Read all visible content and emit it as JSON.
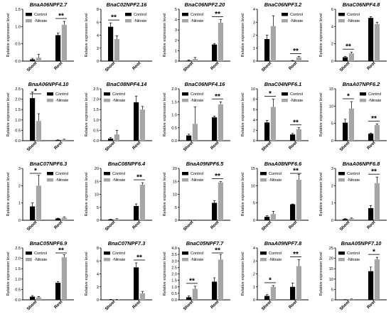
{
  "figure": {
    "colors": {
      "control": "#000000",
      "nitrate": "#a6a6a6",
      "axis": "#000000"
    }
  },
  "chart_data": [
    {
      "type": "bar",
      "title": "BnaA06NPF2.7",
      "ylabel": "Relative expression level",
      "categories": [
        "Shoot",
        "Root"
      ],
      "ylim": [
        0,
        1.5
      ],
      "yticks": [
        "0.0",
        "0.5",
        "1.0",
        "1.5"
      ],
      "legend_pos": "upper-left",
      "series": [
        {
          "name": "Control",
          "values": [
            0.05,
            0.75
          ],
          "errors": [
            0.03,
            0.06
          ]
        },
        {
          "name": "-Nitrate",
          "values": [
            0.1,
            1.05
          ],
          "errors": [
            0.1,
            0.1
          ]
        }
      ],
      "sig": [
        {
          "cat": 1,
          "label": "**"
        }
      ]
    },
    {
      "type": "bar",
      "title": "BnaC02NPF2.16",
      "ylabel": "Relative expression level",
      "categories": [
        "Shoot",
        "Root"
      ],
      "ylim": [
        0,
        8
      ],
      "yticks": [
        "0",
        "2",
        "4",
        "6",
        "8"
      ],
      "legend_pos": "upper-right",
      "series": [
        {
          "name": "Control",
          "values": [
            5.3,
            0.0
          ],
          "errors": [
            0.6,
            0
          ]
        },
        {
          "name": "-Nitrate",
          "values": [
            3.4,
            0.0
          ],
          "errors": [
            0.5,
            0
          ]
        }
      ],
      "sig": [
        {
          "cat": 0,
          "label": "**"
        }
      ]
    },
    {
      "type": "bar",
      "title": "BnaC06NPF2.20",
      "ylabel": "Relative expression level",
      "categories": [
        "Shoot",
        "Root"
      ],
      "ylim": [
        0,
        5
      ],
      "yticks": [
        "0",
        "1",
        "2",
        "3",
        "4",
        "5"
      ],
      "legend_pos": "upper-left",
      "series": [
        {
          "name": "Control",
          "values": [
            0.05,
            1.6
          ],
          "errors": [
            0.05,
            0.1
          ]
        },
        {
          "name": "-Nitrate",
          "values": [
            0.2,
            3.7
          ],
          "errors": [
            0.15,
            0.3
          ]
        }
      ],
      "sig": [
        {
          "cat": 1,
          "label": "**"
        }
      ]
    },
    {
      "type": "bar",
      "title": "BnaC06NPF3.2",
      "ylabel": "Relative expression level",
      "categories": [
        "Shoot",
        "Root"
      ],
      "ylim": [
        0,
        4
      ],
      "yticks": [
        "0",
        "1",
        "2",
        "3",
        "4"
      ],
      "legend_pos": "upper-right",
      "series": [
        {
          "name": "Control",
          "values": [
            1.7,
            0.03
          ],
          "errors": [
            0.3,
            0.02
          ]
        },
        {
          "name": "-Nitrate",
          "values": [
            2.7,
            0.3
          ],
          "errors": [
            0.8,
            0.06
          ]
        }
      ],
      "sig": [
        {
          "cat": 1,
          "label": "**"
        }
      ]
    },
    {
      "type": "bar",
      "title": "BnaC06NPF4.8",
      "ylabel": "Relative expression level",
      "categories": [
        "Shoot",
        "Root"
      ],
      "ylim": [
        0,
        6
      ],
      "yticks": [
        "0",
        "2",
        "4",
        "6"
      ],
      "legend_pos": "upper-left",
      "series": [
        {
          "name": "Control",
          "values": [
            0.45,
            5.0
          ],
          "errors": [
            0.1,
            0.15
          ]
        },
        {
          "name": "-Nitrate",
          "values": [
            0.9,
            4.3
          ],
          "errors": [
            0.15,
            0.2
          ]
        }
      ],
      "sig": [
        {
          "cat": 0,
          "label": "**"
        }
      ]
    },
    {
      "type": "bar",
      "title": "BnaA06NPF4.10",
      "ylabel": "Relative expression level",
      "categories": [
        "Shoot",
        "Root"
      ],
      "ylim": [
        0,
        2.5
      ],
      "yticks": [
        "0.0",
        "0.5",
        "1.0",
        "1.5",
        "2.0",
        "2.5"
      ],
      "legend_pos": "upper-right",
      "series": [
        {
          "name": "Control",
          "values": [
            2.05,
            0.03
          ],
          "errors": [
            0.3,
            0.01
          ]
        },
        {
          "name": "-Nitrate",
          "values": [
            0.95,
            0.05
          ],
          "errors": [
            0.35,
            0.02
          ]
        }
      ],
      "sig": [
        {
          "cat": 0,
          "label": "*"
        }
      ]
    },
    {
      "type": "bar",
      "title": "BnaC08NPF4.14",
      "ylabel": "Relative expression level",
      "categories": [
        "Shoot",
        "Root"
      ],
      "ylim": [
        0,
        2.5
      ],
      "yticks": [
        "0.0",
        "0.5",
        "1.0",
        "1.5",
        "2.0",
        "2.5"
      ],
      "legend_pos": "upper-left",
      "series": [
        {
          "name": "Control",
          "values": [
            0.1,
            1.85
          ],
          "errors": [
            0.05,
            0.3
          ]
        },
        {
          "name": "-Nitrate",
          "values": [
            0.3,
            1.5
          ],
          "errors": [
            0.2,
            0.15
          ]
        }
      ],
      "sig": []
    },
    {
      "type": "bar",
      "title": "BnaC06NPF4.16",
      "ylabel": "Relative expression level",
      "categories": [
        "Shoot",
        "Root"
      ],
      "ylim": [
        0,
        2.0
      ],
      "yticks": [
        "0.0",
        "0.5",
        "1.0",
        "1.5",
        "2.0"
      ],
      "legend_pos": "upper-left",
      "series": [
        {
          "name": "Control",
          "values": [
            0.2,
            0.9
          ],
          "errors": [
            0.05,
            0.05
          ]
        },
        {
          "name": "-Nitrate",
          "values": [
            0.65,
            1.4
          ],
          "errors": [
            0.65,
            0.1
          ]
        }
      ],
      "sig": [
        {
          "cat": 1,
          "label": "**"
        }
      ]
    },
    {
      "type": "bar",
      "title": "BnaC04NPF6.1",
      "ylabel": "Relative expression level",
      "categories": [
        "Shoot",
        "Root"
      ],
      "ylim": [
        0,
        10
      ],
      "yticks": [
        "0",
        "2",
        "4",
        "6",
        "8",
        "10"
      ],
      "legend_pos": "upper-right",
      "series": [
        {
          "name": "Control",
          "values": [
            3.5,
            1.2
          ],
          "errors": [
            0.4,
            0.2
          ]
        },
        {
          "name": "-Nitrate",
          "values": [
            6.5,
            2.2
          ],
          "errors": [
            1.5,
            0.3
          ]
        }
      ],
      "sig": [
        {
          "cat": 0,
          "label": "*"
        },
        {
          "cat": 1,
          "label": "**"
        }
      ]
    },
    {
      "type": "bar",
      "title": "BnaA07NPF6.2",
      "ylabel": "Relative expression level",
      "categories": [
        "Shoot",
        "Root"
      ],
      "ylim": [
        0,
        15
      ],
      "yticks": [
        "0",
        "5",
        "10",
        "15"
      ],
      "legend_pos": "upper-right",
      "series": [
        {
          "name": "Control",
          "values": [
            5.2,
            2.0
          ],
          "errors": [
            1.0,
            0.2
          ]
        },
        {
          "name": "-Nitrate",
          "values": [
            9.3,
            4.5
          ],
          "errors": [
            2.0,
            0.3
          ]
        }
      ],
      "sig": [
        {
          "cat": 0,
          "label": "*"
        },
        {
          "cat": 1,
          "label": "**"
        }
      ]
    },
    {
      "type": "bar",
      "title": "BnaC07NPF6.3",
      "ylabel": "Relative expression level",
      "categories": [
        "Shoot",
        "Root"
      ],
      "ylim": [
        0,
        3
      ],
      "yticks": [
        "0",
        "1",
        "2",
        "3"
      ],
      "legend_pos": "upper-right",
      "series": [
        {
          "name": "Control",
          "values": [
            0.8,
            0.1
          ],
          "errors": [
            0.2,
            0.02
          ]
        },
        {
          "name": "-Nitrate",
          "values": [
            2.0,
            0.15
          ],
          "errors": [
            0.6,
            0.05
          ]
        }
      ],
      "sig": [
        {
          "cat": 0,
          "label": "*"
        }
      ]
    },
    {
      "type": "bar",
      "title": "BnaC08NPF6.4",
      "ylabel": "Relative expression level",
      "categories": [
        "Shoot",
        "Root"
      ],
      "ylim": [
        0,
        20
      ],
      "yticks": [
        "0",
        "5",
        "10",
        "15",
        "20"
      ],
      "legend_pos": "upper-left",
      "series": [
        {
          "name": "Control",
          "values": [
            0.3,
            5.5
          ],
          "errors": [
            0.1,
            0.8
          ]
        },
        {
          "name": "-Nitrate",
          "values": [
            0.4,
            13.7
          ],
          "errors": [
            0.2,
            0.8
          ]
        }
      ],
      "sig": [
        {
          "cat": 1,
          "label": "**"
        }
      ]
    },
    {
      "type": "bar",
      "title": "BnaA09NPF6.5",
      "ylabel": "Relative expression level",
      "categories": [
        "Shoot",
        "Root"
      ],
      "ylim": [
        0,
        20
      ],
      "yticks": [
        "0",
        "5",
        "10",
        "15",
        "20"
      ],
      "legend_pos": "upper-left",
      "series": [
        {
          "name": "Control",
          "values": [
            0.05,
            6.7
          ],
          "errors": [
            0.02,
            0.8
          ]
        },
        {
          "name": "-Nitrate",
          "values": [
            0.05,
            14.6
          ],
          "errors": [
            0.02,
            0.3
          ]
        }
      ],
      "sig": [
        {
          "cat": 1,
          "label": "**"
        }
      ]
    },
    {
      "type": "bar",
      "title": "BnaA08NPF6.6",
      "ylabel": "Relative expression level",
      "categories": [
        "Shoot",
        "Root"
      ],
      "ylim": [
        0,
        15
      ],
      "yticks": [
        "0",
        "5",
        "10",
        "15"
      ],
      "legend_pos": "upper-left",
      "series": [
        {
          "name": "Control",
          "values": [
            1.0,
            4.6
          ],
          "errors": [
            0.3,
            0.1
          ]
        },
        {
          "name": "-Nitrate",
          "values": [
            1.8,
            11.7
          ],
          "errors": [
            0.8,
            1.6
          ]
        }
      ],
      "sig": [
        {
          "cat": 1,
          "label": "**"
        }
      ]
    },
    {
      "type": "bar",
      "title": "BnaA06NPF6.8",
      "ylabel": "Relative expression level",
      "categories": [
        "Shoot",
        "Root"
      ],
      "ylim": [
        0,
        3
      ],
      "yticks": [
        "0",
        "1",
        "2",
        "3"
      ],
      "legend_pos": "upper-left",
      "series": [
        {
          "name": "Control",
          "values": [
            0.07,
            0.7
          ],
          "errors": [
            0.02,
            0.15
          ]
        },
        {
          "name": "-Nitrate",
          "values": [
            0.1,
            2.15
          ],
          "errors": [
            0.03,
            0.35
          ]
        }
      ],
      "sig": [
        {
          "cat": 1,
          "label": "**"
        }
      ]
    },
    {
      "type": "bar",
      "title": "BnaC05NPF6.9",
      "ylabel": "Relative expression level",
      "categories": [
        "Shoot",
        "Root"
      ],
      "ylim": [
        0,
        2.5
      ],
      "yticks": [
        "0.0",
        "0.5",
        "1.0",
        "1.5",
        "2.0",
        "2.5"
      ],
      "legend_pos": "upper-left",
      "series": [
        {
          "name": "Control",
          "values": [
            0.15,
            0.82
          ],
          "errors": [
            0.05,
            0.06
          ]
        },
        {
          "name": "-Nitrate",
          "values": [
            0.12,
            2.05
          ],
          "errors": [
            0.04,
            0.12
          ]
        }
      ],
      "sig": [
        {
          "cat": 1,
          "label": "**"
        }
      ]
    },
    {
      "type": "bar",
      "title": "BnaC07NPF7.3",
      "ylabel": "Relative expression level",
      "categories": [
        "Shoot",
        "Root"
      ],
      "ylim": [
        0,
        8
      ],
      "yticks": [
        "0",
        "2",
        "4",
        "6",
        "8"
      ],
      "legend_pos": "upper-left",
      "series": [
        {
          "name": "Control",
          "values": [
            0.05,
            5.0
          ],
          "errors": [
            0.02,
            0.7
          ]
        },
        {
          "name": "-Nitrate",
          "values": [
            0.05,
            1.0
          ],
          "errors": [
            0.02,
            0.3
          ]
        }
      ],
      "sig": [
        {
          "cat": 1,
          "label": "**"
        }
      ]
    },
    {
      "type": "bar",
      "title": "BnaC05NPF7.7",
      "ylabel": "Relative expression level",
      "categories": [
        "Shoot",
        "Root"
      ],
      "ylim": [
        0,
        4.0
      ],
      "yticks": [
        "0.0",
        "0.5",
        "1.0",
        "1.5",
        "2.0",
        "2.5",
        "3.0",
        "3.5",
        "4.0"
      ],
      "legend_pos": "upper-left",
      "series": [
        {
          "name": "Control",
          "values": [
            0.2,
            1.4
          ],
          "errors": [
            0.1,
            0.3
          ]
        },
        {
          "name": "-Nitrate",
          "values": [
            0.85,
            3.1
          ],
          "errors": [
            0.2,
            0.4
          ]
        }
      ],
      "sig": [
        {
          "cat": 0,
          "label": "**"
        },
        {
          "cat": 1,
          "label": "**"
        }
      ]
    },
    {
      "type": "bar",
      "title": "BnaA09NPF7.8",
      "ylabel": "Relative expression level",
      "categories": [
        "Shoot",
        "Root"
      ],
      "ylim": [
        0,
        4
      ],
      "yticks": [
        "0",
        "1",
        "2",
        "3",
        "4"
      ],
      "legend_pos": "upper-left",
      "series": [
        {
          "name": "Control",
          "values": [
            0.3,
            1.0
          ],
          "errors": [
            0.1,
            0.3
          ]
        },
        {
          "name": "-Nitrate",
          "values": [
            1.0,
            2.6
          ],
          "errors": [
            0.1,
            0.5
          ]
        }
      ],
      "sig": [
        {
          "cat": 0,
          "label": "*"
        },
        {
          "cat": 1,
          "label": "**"
        }
      ]
    },
    {
      "type": "bar",
      "title": "BnaA05NPF7.10",
      "ylabel": "Relative expression level",
      "categories": [
        "Shoot",
        "Root"
      ],
      "ylim": [
        0,
        25
      ],
      "yticks": [
        "0",
        "5",
        "10",
        "15",
        "20",
        "25"
      ],
      "legend_pos": "upper-left",
      "series": [
        {
          "name": "Control",
          "values": [
            0.1,
            13.8
          ],
          "errors": [
            0.05,
            2.0
          ]
        },
        {
          "name": "-Nitrate",
          "values": [
            0.3,
            19.5
          ],
          "errors": [
            0.1,
            1.0
          ]
        }
      ],
      "sig": [
        {
          "cat": 1,
          "label": "*"
        }
      ]
    }
  ]
}
